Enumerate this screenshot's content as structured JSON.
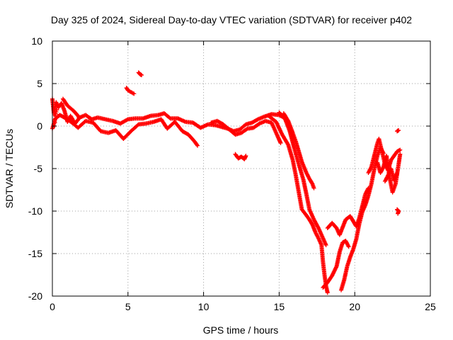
{
  "chart_data": {
    "type": "scatter",
    "title": "Day 325 of 2024, Sidereal Day-to-day VTEC variation (SDTVAR) for receiver p402",
    "xlabel": "GPS time / hours",
    "ylabel": "SDTVAR / TECUs",
    "xlim": [
      0,
      25
    ],
    "ylim": [
      -20,
      10
    ],
    "xticks": [
      0,
      5,
      10,
      15,
      20,
      25
    ],
    "yticks": [
      -20,
      -15,
      -10,
      -5,
      0,
      5,
      10
    ],
    "x_tick_labels": [
      "0",
      "5",
      "10",
      "15",
      "20",
      "25"
    ],
    "y_tick_labels": [
      "-20",
      "-15",
      "-10",
      "-5",
      "0",
      "5",
      "10"
    ],
    "grid": true,
    "marker": "plus",
    "marker_color": "#ff0000",
    "series": [
      {
        "name": "SDTVAR",
        "tracks": [
          [
            [
              0,
              3.2
            ],
            [
              0.1,
              1.5
            ],
            [
              0.25,
              2.8
            ],
            [
              0.4,
              2.2
            ],
            [
              0.6,
              2.7
            ],
            [
              0.8,
              1.8
            ],
            [
              1.0,
              0.5
            ],
            [
              1.2,
              1.2
            ],
            [
              1.5,
              0.3
            ],
            [
              1.8,
              1.0
            ],
            [
              2.2,
              1.3
            ],
            [
              2.6,
              0.8
            ],
            [
              3.0,
              1.0
            ],
            [
              3.5,
              0.8
            ],
            [
              4.0,
              0.6
            ],
            [
              4.5,
              0.3
            ],
            [
              5.0,
              0.8
            ],
            [
              5.5,
              0.9
            ],
            [
              6.0,
              0.9
            ],
            [
              6.5,
              1.2
            ],
            [
              7.0,
              1.3
            ],
            [
              7.4,
              1.5
            ],
            [
              7.8,
              0.9
            ],
            [
              8.3,
              0.9
            ],
            [
              8.8,
              0.5
            ],
            [
              9.3,
              0.4
            ],
            [
              9.8,
              -0.2
            ],
            [
              10.3,
              0.2
            ],
            [
              10.8,
              0.1
            ],
            [
              11.2,
              -0.1
            ],
            [
              11.6,
              -0.3
            ],
            [
              12.0,
              -0.6
            ],
            [
              12.4,
              -0.4
            ],
            [
              12.8,
              0.2
            ],
            [
              13.2,
              0.4
            ],
            [
              13.6,
              0.8
            ],
            [
              14.0,
              1.1
            ],
            [
              14.5,
              1.4
            ],
            [
              15.0,
              1.3
            ],
            [
              15.3,
              1.0
            ]
          ],
          [
            [
              0,
              -0.3
            ],
            [
              0.2,
              0.9
            ],
            [
              0.5,
              1.3
            ],
            [
              0.9,
              0.9
            ],
            [
              1.3,
              0.4
            ],
            [
              1.7,
              -0.2
            ],
            [
              2.2,
              0.6
            ],
            [
              2.7,
              0.4
            ],
            [
              3.2,
              -0.6
            ],
            [
              3.7,
              -0.8
            ],
            [
              4.2,
              -0.5
            ],
            [
              4.7,
              -1.5
            ],
            [
              5.2,
              -0.6
            ],
            [
              5.7,
              0.2
            ],
            [
              6.2,
              0.3
            ],
            [
              6.7,
              0.5
            ],
            [
              7.2,
              0.8
            ],
            [
              7.6,
              -0.3
            ],
            [
              8.1,
              0.5
            ],
            [
              8.6,
              -0.6
            ],
            [
              9.0,
              -1.0
            ],
            [
              9.4,
              -1.8
            ],
            [
              9.6,
              -2.3
            ]
          ],
          [
            [
              0.7,
              3.2
            ],
            [
              1.0,
              2.4
            ],
            [
              1.4,
              1.8
            ],
            [
              1.7,
              1.2
            ],
            [
              1.8,
              0.9
            ]
          ],
          [
            [
              10.5,
              0.4
            ],
            [
              10.9,
              0.6
            ],
            [
              11.3,
              0.2
            ],
            [
              11.7,
              -0.4
            ],
            [
              12.1,
              -1.0
            ],
            [
              12.5,
              -0.8
            ],
            [
              12.9,
              -0.3
            ],
            [
              13.3,
              -0.2
            ],
            [
              13.7,
              0.3
            ],
            [
              14.1,
              0.6
            ],
            [
              14.5,
              0.4
            ],
            [
              14.8,
              -0.8
            ],
            [
              15.0,
              -1.6
            ],
            [
              15.1,
              -2.0
            ]
          ],
          [
            [
              12.1,
              -3.3
            ],
            [
              12.3,
              -3.8
            ],
            [
              12.5,
              -3.6
            ],
            [
              12.7,
              -3.9
            ],
            [
              12.8,
              -3.5
            ]
          ],
          [
            [
              14.3,
              1.2
            ],
            [
              14.8,
              0.5
            ],
            [
              15.2,
              -1.0
            ],
            [
              15.6,
              -2.2
            ],
            [
              15.9,
              -4.0
            ],
            [
              16.1,
              -5.8
            ],
            [
              16.3,
              -7.8
            ],
            [
              16.5,
              -9.8
            ],
            [
              16.8,
              -10.5
            ],
            [
              17.0,
              -11.0
            ],
            [
              17.2,
              -11.6
            ],
            [
              17.4,
              -12.5
            ],
            [
              17.6,
              -13.2
            ],
            [
              17.8,
              -14.0
            ],
            [
              17.9,
              -16.0
            ],
            [
              18.0,
              -17.5
            ],
            [
              18.1,
              -18.8
            ],
            [
              18.2,
              -19.6
            ]
          ],
          [
            [
              15.0,
              1.6
            ],
            [
              15.4,
              0.8
            ],
            [
              15.7,
              -0.6
            ],
            [
              16.0,
              -2.6
            ],
            [
              16.3,
              -4.5
            ],
            [
              16.6,
              -6.3
            ],
            [
              16.8,
              -8.0
            ],
            [
              17.0,
              -9.8
            ],
            [
              17.3,
              -11.0
            ],
            [
              17.6,
              -12.0
            ],
            [
              17.9,
              -13.2
            ],
            [
              18.1,
              -14.0
            ]
          ],
          [
            [
              15.3,
              1.5
            ],
            [
              15.6,
              0.6
            ],
            [
              15.9,
              -0.8
            ],
            [
              16.1,
              -1.8
            ],
            [
              16.3,
              -3.0
            ],
            [
              16.5,
              -4.2
            ],
            [
              16.8,
              -5.5
            ],
            [
              17.0,
              -6.2
            ],
            [
              17.2,
              -6.8
            ],
            [
              17.3,
              -7.3
            ]
          ],
          [
            [
              18.2,
              -12.0
            ],
            [
              18.5,
              -11.4
            ],
            [
              18.8,
              -12.0
            ],
            [
              19.0,
              -12.8
            ],
            [
              19.2,
              -11.9
            ],
            [
              19.4,
              -11.0
            ],
            [
              19.7,
              -10.6
            ],
            [
              19.9,
              -11.2
            ],
            [
              20.1,
              -11.8
            ],
            [
              20.3,
              -10.8
            ],
            [
              20.5,
              -9.4
            ],
            [
              20.7,
              -8.0
            ],
            [
              20.9,
              -7.3
            ]
          ],
          [
            [
              17.9,
              -19.0
            ],
            [
              18.2,
              -18.4
            ],
            [
              18.5,
              -17.6
            ],
            [
              18.8,
              -16.5
            ],
            [
              19.0,
              -14.8
            ],
            [
              19.2,
              -13.7
            ],
            [
              19.4,
              -13.5
            ],
            [
              19.6,
              -14.2
            ]
          ],
          [
            [
              19.1,
              -19.3
            ],
            [
              19.3,
              -18.1
            ],
            [
              19.5,
              -16.5
            ],
            [
              19.7,
              -15.4
            ],
            [
              19.9,
              -14.5
            ],
            [
              20.1,
              -13.3
            ],
            [
              20.3,
              -11.5
            ],
            [
              20.5,
              -10.1
            ],
            [
              20.7,
              -9.3
            ],
            [
              20.9,
              -8.2
            ],
            [
              21.1,
              -6.8
            ],
            [
              21.3,
              -5.0
            ],
            [
              21.5,
              -3.5
            ],
            [
              21.7,
              -2.5
            ],
            [
              21.9,
              -3.2
            ]
          ],
          [
            [
              20.9,
              -5.5
            ],
            [
              21.1,
              -4.8
            ],
            [
              21.3,
              -3.4
            ],
            [
              21.5,
              -2.0
            ],
            [
              21.6,
              -1.5
            ],
            [
              21.8,
              -3.0
            ],
            [
              22.0,
              -4.5
            ],
            [
              22.2,
              -5.2
            ],
            [
              22.4,
              -4.0
            ],
            [
              22.6,
              -3.5
            ],
            [
              22.8,
              -3.0
            ],
            [
              23.0,
              -2.8
            ]
          ],
          [
            [
              21.5,
              -4.3
            ],
            [
              21.7,
              -5.5
            ],
            [
              21.9,
              -4.8
            ],
            [
              22.1,
              -3.5
            ],
            [
              22.3,
              -6.0
            ],
            [
              22.5,
              -7.8
            ],
            [
              22.7,
              -6.8
            ],
            [
              22.9,
              -4.5
            ],
            [
              23.0,
              -3.3
            ]
          ],
          [
            [
              22.0,
              -6.5
            ],
            [
              22.2,
              -5.8
            ],
            [
              22.4,
              -5.0
            ],
            [
              22.6,
              -6.4
            ],
            [
              22.8,
              -5.5
            ]
          ]
        ],
        "clusters": [
          [
            [
              4.9,
              4.5
            ],
            [
              5.0,
              4.2
            ],
            [
              5.2,
              4.0
            ],
            [
              5.4,
              3.8
            ]
          ],
          [
            [
              5.7,
              6.3
            ],
            [
              5.8,
              6.1
            ],
            [
              5.9,
              6.0
            ]
          ],
          [
            [
              22.8,
              -0.6
            ],
            [
              22.9,
              -0.5
            ]
          ],
          [
            [
              22.8,
              -9.8
            ],
            [
              22.9,
              -10.0
            ],
            [
              22.85,
              -10.3
            ]
          ],
          [
            [
              0.1,
              2.0
            ],
            [
              0.15,
              0.0
            ],
            [
              0.2,
              1.2
            ],
            [
              0.3,
              1.9
            ]
          ]
        ]
      }
    ]
  }
}
